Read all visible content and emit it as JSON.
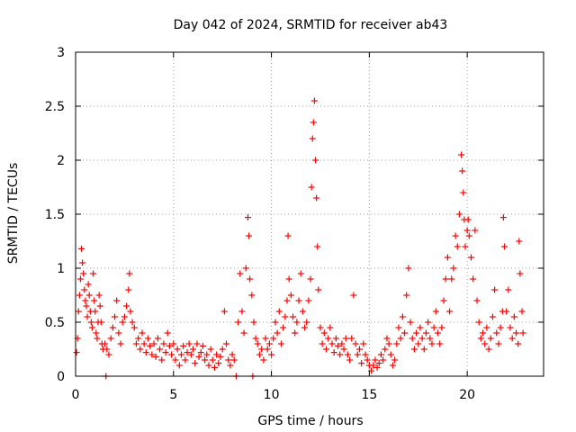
{
  "chart_data": {
    "type": "scatter",
    "title": "Day 042 of 2024, SRMTID for receiver ab43",
    "xlabel": "GPS time / hours",
    "ylabel": "SRMTID / TECUs",
    "xlim": [
      0,
      23.9
    ],
    "ylim": [
      0,
      3
    ],
    "x_ticks": [
      0,
      5,
      10,
      15,
      20
    ],
    "y_ticks": [
      0,
      0.5,
      1,
      1.5,
      2,
      2.5,
      3
    ],
    "x_tick_labels": [
      "0",
      "5",
      "10",
      "15",
      "20"
    ],
    "y_tick_labels": [
      "0",
      "0.5",
      "1",
      "1.5",
      "2",
      "2.5",
      "3"
    ],
    "grid": true,
    "marker": "+",
    "series": [
      {
        "name": "SRMTID",
        "color": "#ff0000",
        "points": [
          [
            0.05,
            0.22
          ],
          [
            0.1,
            0.35
          ],
          [
            0.15,
            0.6
          ],
          [
            0.2,
            0.75
          ],
          [
            0.25,
            0.9
          ],
          [
            0.3,
            1.18
          ],
          [
            0.35,
            1.05
          ],
          [
            0.4,
            0.95
          ],
          [
            0.45,
            0.8
          ],
          [
            0.5,
            0.7
          ],
          [
            0.55,
            0.65
          ],
          [
            0.6,
            0.55
          ],
          [
            0.65,
            0.85
          ],
          [
            0.7,
            0.75
          ],
          [
            0.75,
            0.6
          ],
          [
            0.8,
            0.5
          ],
          [
            0.85,
            0.45
          ],
          [
            0.9,
            0.95
          ],
          [
            0.95,
            0.7
          ],
          [
            1.0,
            0.6
          ],
          [
            1.05,
            0.4
          ],
          [
            1.1,
            0.35
          ],
          [
            1.15,
            0.5
          ],
          [
            1.2,
            0.75
          ],
          [
            1.25,
            0.65
          ],
          [
            1.3,
            0.5
          ],
          [
            1.35,
            0.3
          ],
          [
            1.4,
            0.25
          ],
          [
            1.5,
            0.3
          ],
          [
            1.55,
            0.0
          ],
          [
            1.6,
            0.25
          ],
          [
            1.7,
            0.2
          ],
          [
            1.8,
            0.35
          ],
          [
            1.9,
            0.45
          ],
          [
            2.0,
            0.55
          ],
          [
            2.1,
            0.7
          ],
          [
            2.2,
            0.4
          ],
          [
            2.3,
            0.3
          ],
          [
            2.4,
            0.5
          ],
          [
            2.5,
            0.55
          ],
          [
            2.6,
            0.65
          ],
          [
            2.7,
            0.8
          ],
          [
            2.75,
            0.95
          ],
          [
            2.8,
            0.6
          ],
          [
            2.9,
            0.5
          ],
          [
            3.0,
            0.45
          ],
          [
            3.1,
            0.3
          ],
          [
            3.2,
            0.35
          ],
          [
            3.3,
            0.25
          ],
          [
            3.4,
            0.4
          ],
          [
            3.5,
            0.3
          ],
          [
            3.6,
            0.22
          ],
          [
            3.7,
            0.35
          ],
          [
            3.8,
            0.28
          ],
          [
            3.9,
            0.2
          ],
          [
            4.0,
            0.3
          ],
          [
            4.1,
            0.18
          ],
          [
            4.2,
            0.35
          ],
          [
            4.3,
            0.25
          ],
          [
            4.4,
            0.15
          ],
          [
            4.5,
            0.3
          ],
          [
            4.6,
            0.22
          ],
          [
            4.7,
            0.4
          ],
          [
            4.8,
            0.28
          ],
          [
            4.9,
            0.2
          ],
          [
            5.0,
            0.3
          ],
          [
            5.1,
            0.15
          ],
          [
            5.2,
            0.25
          ],
          [
            5.3,
            0.1
          ],
          [
            5.4,
            0.2
          ],
          [
            5.5,
            0.28
          ],
          [
            5.6,
            0.15
          ],
          [
            5.7,
            0.22
          ],
          [
            5.8,
            0.3
          ],
          [
            5.9,
            0.2
          ],
          [
            6.0,
            0.25
          ],
          [
            6.1,
            0.12
          ],
          [
            6.2,
            0.3
          ],
          [
            6.3,
            0.18
          ],
          [
            6.4,
            0.22
          ],
          [
            6.5,
            0.28
          ],
          [
            6.6,
            0.15
          ],
          [
            6.7,
            0.2
          ],
          [
            6.8,
            0.1
          ],
          [
            6.9,
            0.25
          ],
          [
            7.0,
            0.15
          ],
          [
            7.1,
            0.08
          ],
          [
            7.2,
            0.2
          ],
          [
            7.3,
            0.12
          ],
          [
            7.4,
            0.18
          ],
          [
            7.5,
            0.25
          ],
          [
            7.6,
            0.6
          ],
          [
            7.7,
            0.3
          ],
          [
            7.8,
            0.15
          ],
          [
            7.9,
            0.1
          ],
          [
            8.0,
            0.2
          ],
          [
            8.1,
            0.15
          ],
          [
            8.2,
            0.0
          ],
          [
            8.3,
            0.5
          ],
          [
            8.4,
            0.95
          ],
          [
            8.5,
            0.6
          ],
          [
            8.6,
            0.4
          ],
          [
            8.7,
            1.0
          ],
          [
            8.8,
            1.47
          ],
          [
            8.85,
            1.3
          ],
          [
            8.9,
            0.9
          ],
          [
            9.0,
            0.75
          ],
          [
            9.05,
            0.0
          ],
          [
            9.1,
            0.5
          ],
          [
            9.2,
            0.35
          ],
          [
            9.3,
            0.3
          ],
          [
            9.4,
            0.2
          ],
          [
            9.5,
            0.25
          ],
          [
            9.6,
            0.15
          ],
          [
            9.7,
            0.35
          ],
          [
            9.8,
            0.25
          ],
          [
            9.9,
            0.3
          ],
          [
            10.0,
            0.2
          ],
          [
            10.1,
            0.35
          ],
          [
            10.2,
            0.5
          ],
          [
            10.3,
            0.4
          ],
          [
            10.4,
            0.6
          ],
          [
            10.5,
            0.3
          ],
          [
            10.6,
            0.45
          ],
          [
            10.7,
            0.55
          ],
          [
            10.8,
            0.7
          ],
          [
            10.85,
            1.3
          ],
          [
            10.9,
            0.9
          ],
          [
            11.0,
            0.75
          ],
          [
            11.1,
            0.55
          ],
          [
            11.2,
            0.4
          ],
          [
            11.3,
            0.5
          ],
          [
            11.4,
            0.7
          ],
          [
            11.5,
            0.95
          ],
          [
            11.6,
            0.6
          ],
          [
            11.7,
            0.45
          ],
          [
            11.8,
            0.5
          ],
          [
            11.9,
            0.7
          ],
          [
            12.0,
            0.9
          ],
          [
            12.05,
            1.75
          ],
          [
            12.1,
            2.2
          ],
          [
            12.15,
            2.35
          ],
          [
            12.2,
            2.55
          ],
          [
            12.25,
            2.0
          ],
          [
            12.3,
            1.65
          ],
          [
            12.35,
            1.2
          ],
          [
            12.4,
            0.8
          ],
          [
            12.5,
            0.45
          ],
          [
            12.6,
            0.3
          ],
          [
            12.7,
            0.4
          ],
          [
            12.8,
            0.25
          ],
          [
            12.9,
            0.35
          ],
          [
            13.0,
            0.45
          ],
          [
            13.1,
            0.3
          ],
          [
            13.2,
            0.22
          ],
          [
            13.3,
            0.35
          ],
          [
            13.4,
            0.28
          ],
          [
            13.5,
            0.2
          ],
          [
            13.6,
            0.3
          ],
          [
            13.7,
            0.25
          ],
          [
            13.8,
            0.35
          ],
          [
            13.9,
            0.2
          ],
          [
            14.0,
            0.15
          ],
          [
            14.1,
            0.35
          ],
          [
            14.2,
            0.75
          ],
          [
            14.3,
            0.3
          ],
          [
            14.4,
            0.2
          ],
          [
            14.5,
            0.25
          ],
          [
            14.6,
            0.12
          ],
          [
            14.7,
            0.3
          ],
          [
            14.8,
            0.2
          ],
          [
            14.9,
            0.15
          ],
          [
            15.0,
            0.1
          ],
          [
            15.1,
            0.05
          ],
          [
            15.2,
            0.1
          ],
          [
            15.3,
            0.15
          ],
          [
            15.4,
            0.08
          ],
          [
            15.5,
            0.12
          ],
          [
            15.6,
            0.2
          ],
          [
            15.7,
            0.15
          ],
          [
            15.8,
            0.25
          ],
          [
            15.9,
            0.35
          ],
          [
            16.0,
            0.3
          ],
          [
            16.1,
            0.2
          ],
          [
            16.2,
            0.1
          ],
          [
            16.3,
            0.15
          ],
          [
            16.4,
            0.3
          ],
          [
            16.5,
            0.45
          ],
          [
            16.6,
            0.35
          ],
          [
            16.7,
            0.55
          ],
          [
            16.8,
            0.4
          ],
          [
            16.9,
            0.75
          ],
          [
            17.0,
            1.0
          ],
          [
            17.1,
            0.5
          ],
          [
            17.2,
            0.35
          ],
          [
            17.3,
            0.25
          ],
          [
            17.4,
            0.4
          ],
          [
            17.5,
            0.3
          ],
          [
            17.6,
            0.45
          ],
          [
            17.7,
            0.35
          ],
          [
            17.8,
            0.25
          ],
          [
            17.9,
            0.4
          ],
          [
            18.0,
            0.5
          ],
          [
            18.1,
            0.35
          ],
          [
            18.2,
            0.3
          ],
          [
            18.3,
            0.45
          ],
          [
            18.4,
            0.6
          ],
          [
            18.5,
            0.4
          ],
          [
            18.6,
            0.3
          ],
          [
            18.7,
            0.45
          ],
          [
            18.8,
            0.7
          ],
          [
            18.9,
            0.9
          ],
          [
            19.0,
            1.1
          ],
          [
            19.1,
            0.6
          ],
          [
            19.2,
            0.9
          ],
          [
            19.3,
            1.0
          ],
          [
            19.4,
            1.3
          ],
          [
            19.5,
            1.2
          ],
          [
            19.6,
            1.5
          ],
          [
            19.7,
            2.05
          ],
          [
            19.75,
            1.9
          ],
          [
            19.8,
            1.7
          ],
          [
            19.85,
            1.45
          ],
          [
            19.9,
            1.2
          ],
          [
            20.0,
            1.35
          ],
          [
            20.05,
            1.45
          ],
          [
            20.1,
            1.3
          ],
          [
            20.2,
            1.1
          ],
          [
            20.3,
            0.9
          ],
          [
            20.4,
            1.35
          ],
          [
            20.5,
            0.7
          ],
          [
            20.6,
            0.5
          ],
          [
            20.7,
            0.35
          ],
          [
            20.8,
            0.4
          ],
          [
            20.9,
            0.3
          ],
          [
            21.0,
            0.45
          ],
          [
            21.1,
            0.25
          ],
          [
            21.2,
            0.35
          ],
          [
            21.3,
            0.55
          ],
          [
            21.4,
            0.8
          ],
          [
            21.5,
            0.4
          ],
          [
            21.6,
            0.3
          ],
          [
            21.7,
            0.45
          ],
          [
            21.8,
            0.6
          ],
          [
            21.85,
            1.47
          ],
          [
            21.9,
            1.2
          ],
          [
            22.0,
            0.6
          ],
          [
            22.1,
            0.8
          ],
          [
            22.2,
            0.45
          ],
          [
            22.3,
            0.35
          ],
          [
            22.4,
            0.55
          ],
          [
            22.5,
            0.4
          ],
          [
            22.6,
            0.3
          ],
          [
            22.65,
            1.25
          ],
          [
            22.7,
            0.95
          ],
          [
            22.8,
            0.6
          ],
          [
            22.85,
            0.4
          ]
        ]
      }
    ]
  }
}
